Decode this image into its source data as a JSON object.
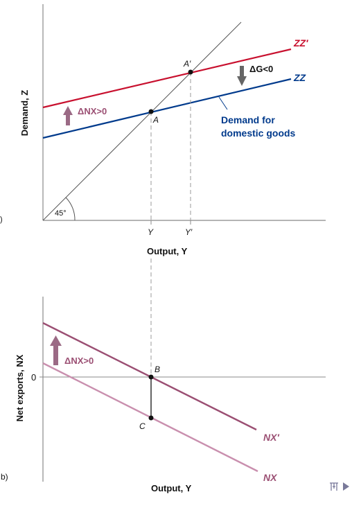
{
  "panel_a": {
    "y_axis_label": "Demand, Z",
    "x_axis_label": "Output, Y",
    "curve_zz_prime_label": "ZZ′",
    "curve_zz_label": "ZZ",
    "shift_g_label": "ΔG<0",
    "shift_nx_label": "ΔNX>0",
    "demand_label_line1": "Demand for",
    "demand_label_line2": "domestic goods",
    "angle_label": "45°",
    "point_a_label": "A",
    "point_a_prime_label": "A′",
    "tick_y_label": "Y",
    "tick_y_prime_label": "Y′",
    "panel_letter": ")"
  },
  "panel_b": {
    "y_axis_label": "Net exports, NX",
    "x_axis_label": "Output, Y",
    "zero_label": "0",
    "shift_nx_label": "ΔNX>0",
    "curve_nx_prime_label": "NX′",
    "curve_nx_label": "NX",
    "point_b_label": "B",
    "point_c_label": "C",
    "panel_letter": "b)"
  },
  "nav": {
    "menu_icon": "list-icon",
    "next_icon": "play-arrow-icon"
  },
  "colors": {
    "zz_prime": "#c8102e",
    "zz": "#003a8c",
    "nx_prime": "#9b4f73",
    "nx": "#c98fae",
    "arrow_up": "#9b6a85",
    "arrow_down": "#666666",
    "axis": "#888888",
    "guide": "#999999",
    "diagonal": "#555555",
    "nav": "#7a7a9a"
  }
}
